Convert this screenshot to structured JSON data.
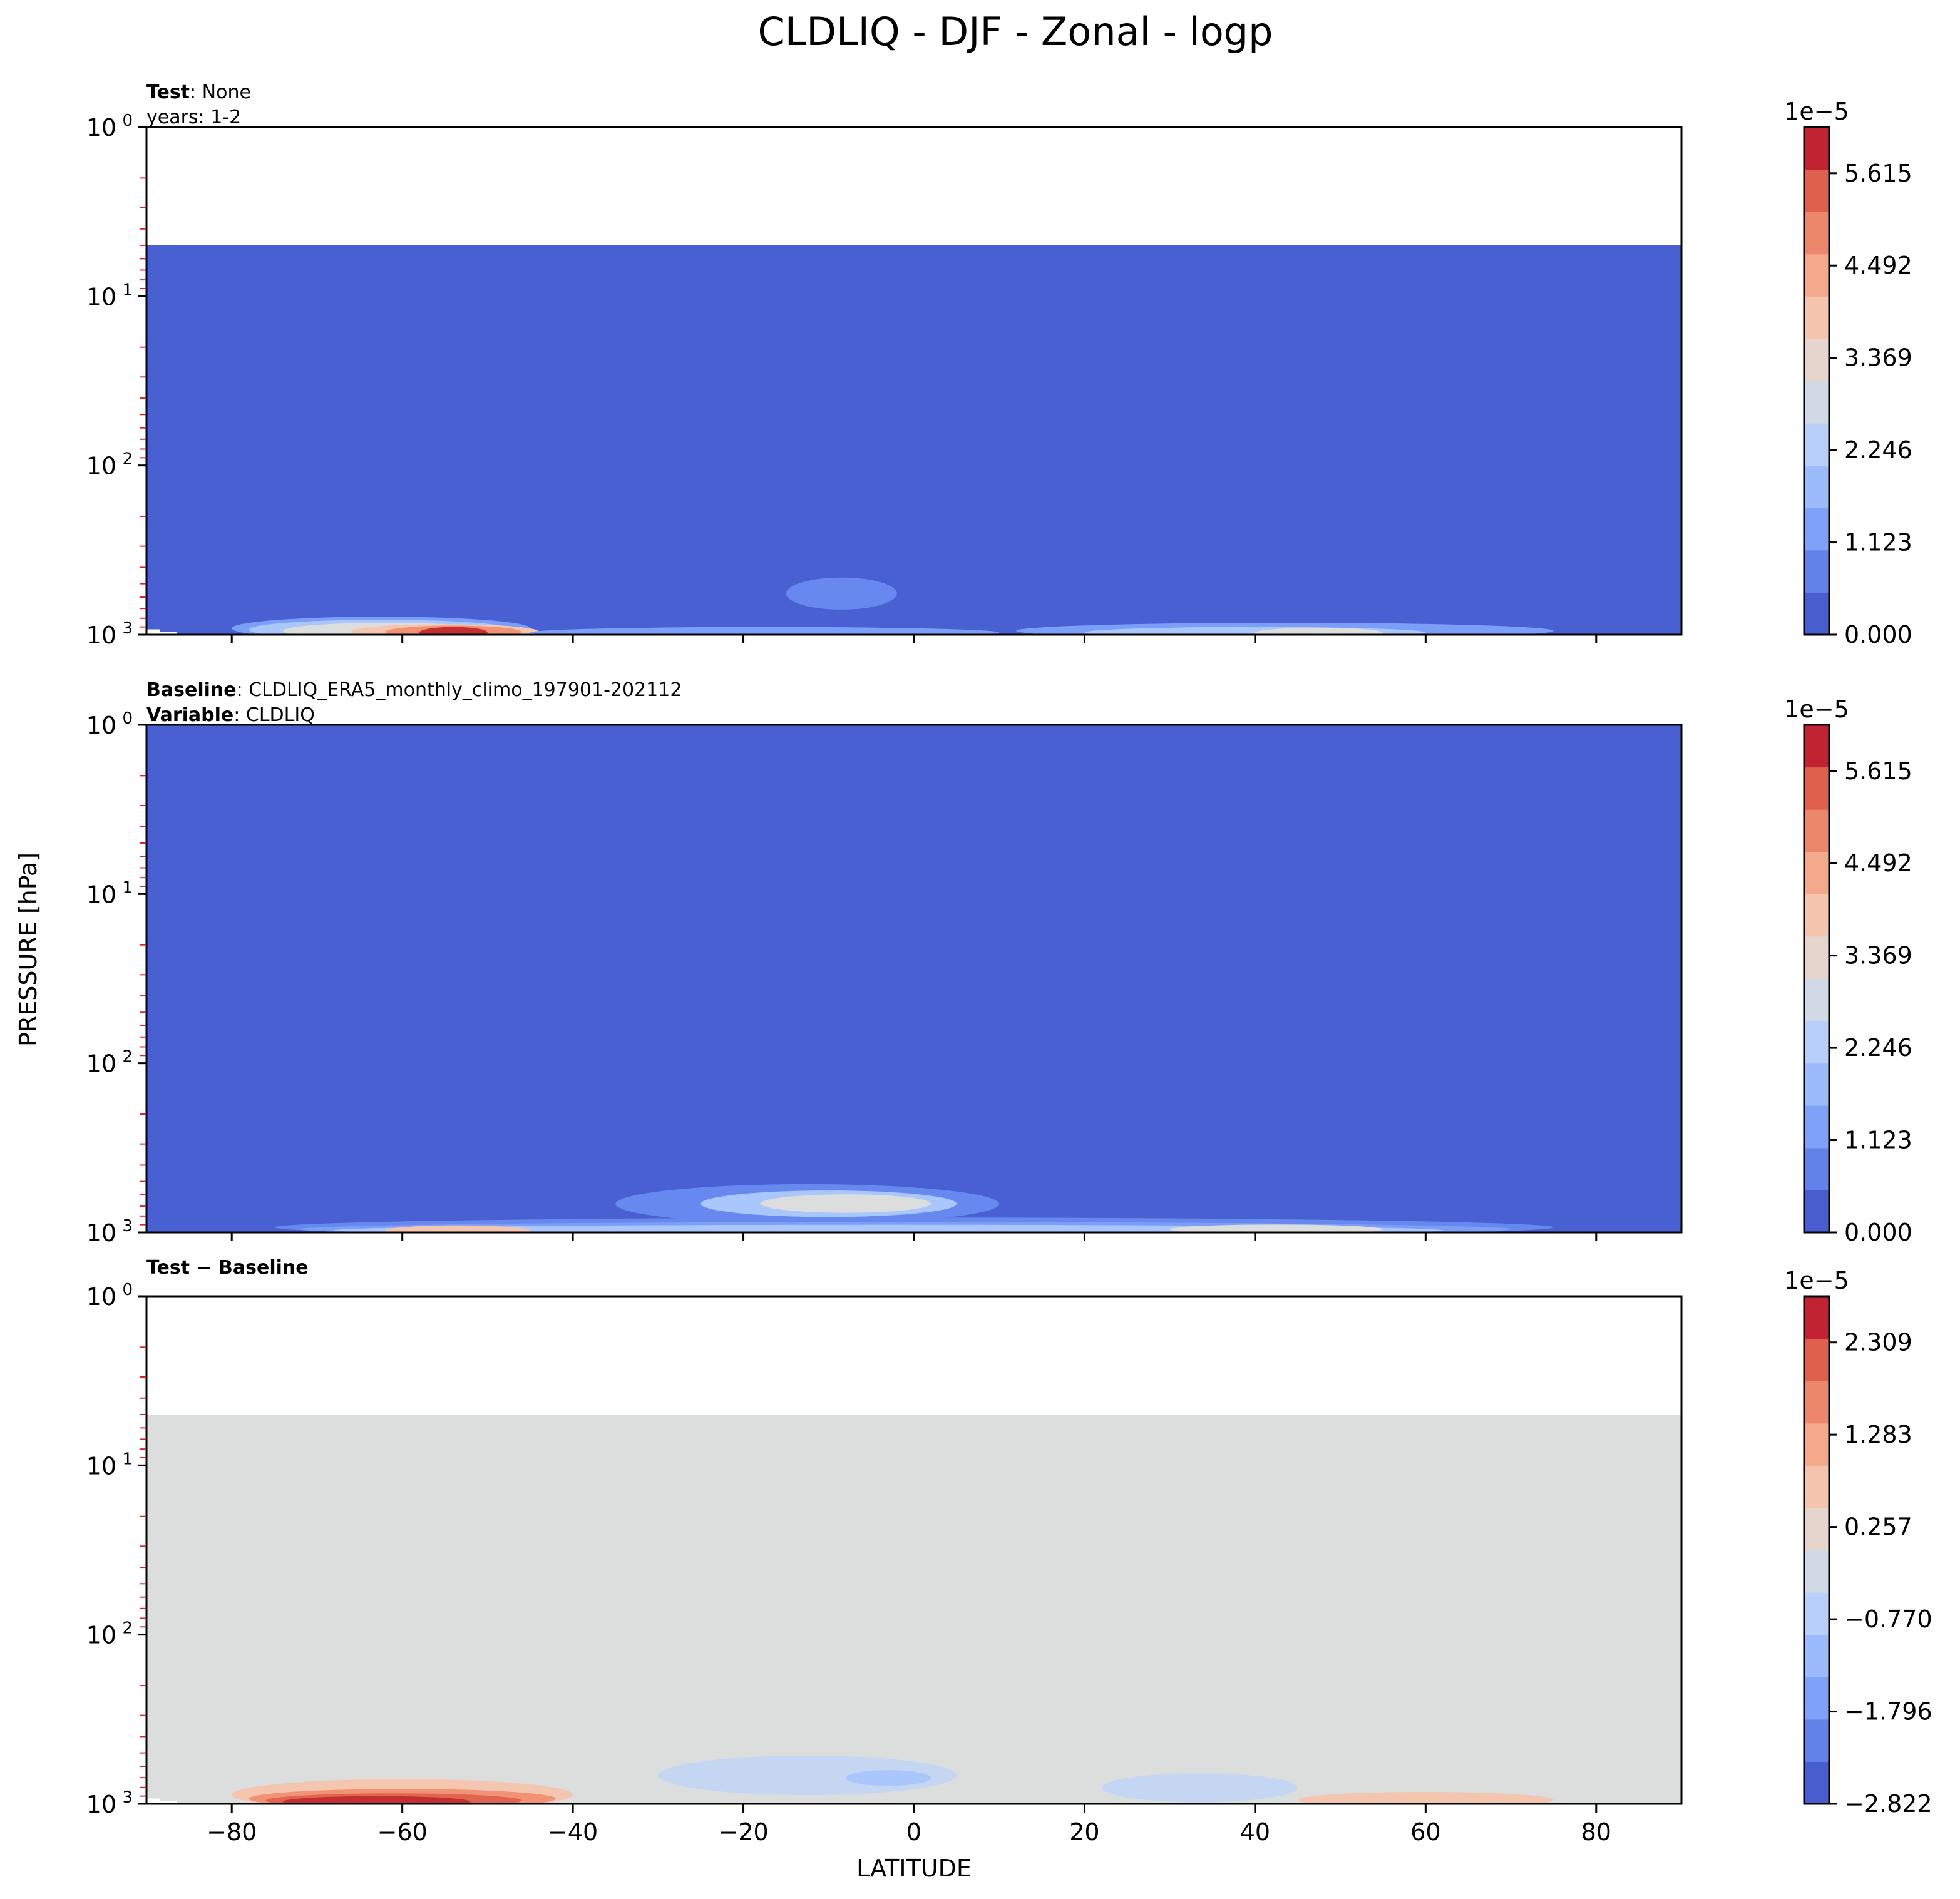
{
  "chart_data": {
    "type": "contour",
    "title": "CLDLIQ - DJF - Zonal - logp",
    "xlabel": "LATITUDE",
    "ylabel": "PRESSURE [hPa]",
    "xlim": [
      -90,
      90
    ],
    "xticks": [
      -80,
      -60,
      -40,
      -20,
      0,
      20,
      40,
      60,
      80
    ],
    "xtick_labels": [
      "−80",
      "−60",
      "−40",
      "−20",
      "0",
      "20",
      "40",
      "60",
      "80"
    ],
    "yscale": "log",
    "ylim": [
      1000,
      1
    ],
    "ytick_base": "10",
    "ytick_exps": [
      "0",
      "1",
      "2",
      "3"
    ],
    "colormap": "coolwarm",
    "panels": [
      {
        "id": "test",
        "header": [
          {
            "bold": "Test",
            "rest": ": None"
          },
          {
            "bold": "",
            "rest": "years: 1-2"
          }
        ],
        "colorbar": {
          "multiplier": "1e−5",
          "min": 0.0,
          "max": 6.177,
          "ticks": [
            0.0,
            1.123,
            2.246,
            3.369,
            4.492,
            5.615
          ],
          "tick_labels": [
            "0.000",
            "1.123",
            "2.246",
            "3.369",
            "4.492",
            "5.615"
          ]
        },
        "fill_top_pressure": 5,
        "background_color": "#4860d1",
        "features": [
          {
            "lat": [
              -80,
              -45
            ],
            "p": [
              1000,
              780
            ],
            "color": "#7b9ff9"
          },
          {
            "lat": [
              -78,
              -47
            ],
            "p": [
              1000,
              820
            ],
            "color": "#aac7fd"
          },
          {
            "lat": [
              -74,
              -50
            ],
            "p": [
              1000,
              860
            ],
            "color": "#dcdddd"
          },
          {
            "lat": [
              -66,
              -44
            ],
            "p": [
              1000,
              880
            ],
            "color": "#f4c6af"
          },
          {
            "lat": [
              -62,
              -46
            ],
            "p": [
              1000,
              900
            ],
            "color": "#f29274"
          },
          {
            "lat": [
              -58,
              -50
            ],
            "p": [
              1000,
              920
            ],
            "color": "#c32e31"
          },
          {
            "lat": [
              -15,
              -2
            ],
            "p": [
              650,
              450
            ],
            "color": "#6788ee"
          },
          {
            "lat": [
              -45,
              10
            ],
            "p": [
              1000,
              920
            ],
            "color": "#7b9ff9"
          },
          {
            "lat": [
              12,
              75
            ],
            "p": [
              1000,
              860
            ],
            "color": "#7b9ff9"
          },
          {
            "lat": [
              20,
              60
            ],
            "p": [
              1000,
              920
            ],
            "color": "#aac7fd"
          },
          {
            "lat": [
              40,
              55
            ],
            "p": [
              1000,
              930
            ],
            "color": "#dcdddd"
          }
        ]
      },
      {
        "id": "baseline",
        "header": [
          {
            "bold": "Baseline",
            "rest": ": CLDLIQ_ERA5_monthly_climo_197901-202112"
          },
          {
            "bold": "Variable",
            "rest": ": CLDLIQ"
          }
        ],
        "colorbar": {
          "multiplier": "1e−5",
          "min": 0.0,
          "max": 6.177,
          "ticks": [
            0.0,
            1.123,
            2.246,
            3.369,
            4.492,
            5.615
          ],
          "tick_labels": [
            "0.000",
            "1.123",
            "2.246",
            "3.369",
            "4.492",
            "5.615"
          ]
        },
        "fill_top_pressure": 1,
        "background_color": "#4860d1",
        "features": [
          {
            "lat": [
              -75,
              75
            ],
            "p": [
              1000,
              820
            ],
            "color": "#6788ee"
          },
          {
            "lat": [
              -35,
              10
            ],
            "p": [
              800,
              500
            ],
            "color": "#6788ee"
          },
          {
            "lat": [
              -25,
              5
            ],
            "p": [
              750,
              560
            ],
            "color": "#aac7fd"
          },
          {
            "lat": [
              -18,
              2
            ],
            "p": [
              720,
              600
            ],
            "color": "#dcdddd"
          },
          {
            "lat": [
              -72,
              70
            ],
            "p": [
              1000,
              880
            ],
            "color": "#7b9ff9"
          },
          {
            "lat": [
              -68,
              62
            ],
            "p": [
              1000,
              920
            ],
            "color": "#aac7fd"
          },
          {
            "lat": [
              -62,
              -45
            ],
            "p": [
              1000,
              930
            ],
            "color": "#f4c6af"
          },
          {
            "lat": [
              30,
              55
            ],
            "p": [
              980,
              920
            ],
            "color": "#dcdddd"
          }
        ]
      },
      {
        "id": "diff",
        "header": [
          {
            "bold": "Test − Baseline",
            "rest": ""
          }
        ],
        "colorbar": {
          "multiplier": "1e−5",
          "min": -2.822,
          "max": 2.822,
          "ticks": [
            -2.822,
            -1.796,
            -0.77,
            0.257,
            1.283,
            2.309
          ],
          "tick_labels": [
            "−2.822",
            "−1.796",
            "−0.770",
            "0.257",
            "1.283",
            "2.309"
          ]
        },
        "fill_top_pressure": 5,
        "background_color": "#dcdddd",
        "features": [
          {
            "lat": [
              -80,
              -40
            ],
            "p": [
              1000,
              700
            ],
            "color": "#f4c6af"
          },
          {
            "lat": [
              -78,
              -42
            ],
            "p": [
              1000,
              820
            ],
            "color": "#f29274"
          },
          {
            "lat": [
              -76,
              -46
            ],
            "p": [
              1000,
              880
            ],
            "color": "#e0654f"
          },
          {
            "lat": [
              -74,
              -52
            ],
            "p": [
              1000,
              920
            ],
            "color": "#c32e31"
          },
          {
            "lat": [
              -30,
              5
            ],
            "p": [
              800,
              500
            ],
            "color": "#c5d6f2"
          },
          {
            "lat": [
              -8,
              2
            ],
            "p": [
              740,
              640
            ],
            "color": "#aac7fd"
          },
          {
            "lat": [
              22,
              45
            ],
            "p": [
              900,
              650
            ],
            "color": "#c5d6f2"
          },
          {
            "lat": [
              45,
              75
            ],
            "p": [
              1000,
              860
            ],
            "color": "#f4c6af"
          }
        ]
      }
    ]
  }
}
